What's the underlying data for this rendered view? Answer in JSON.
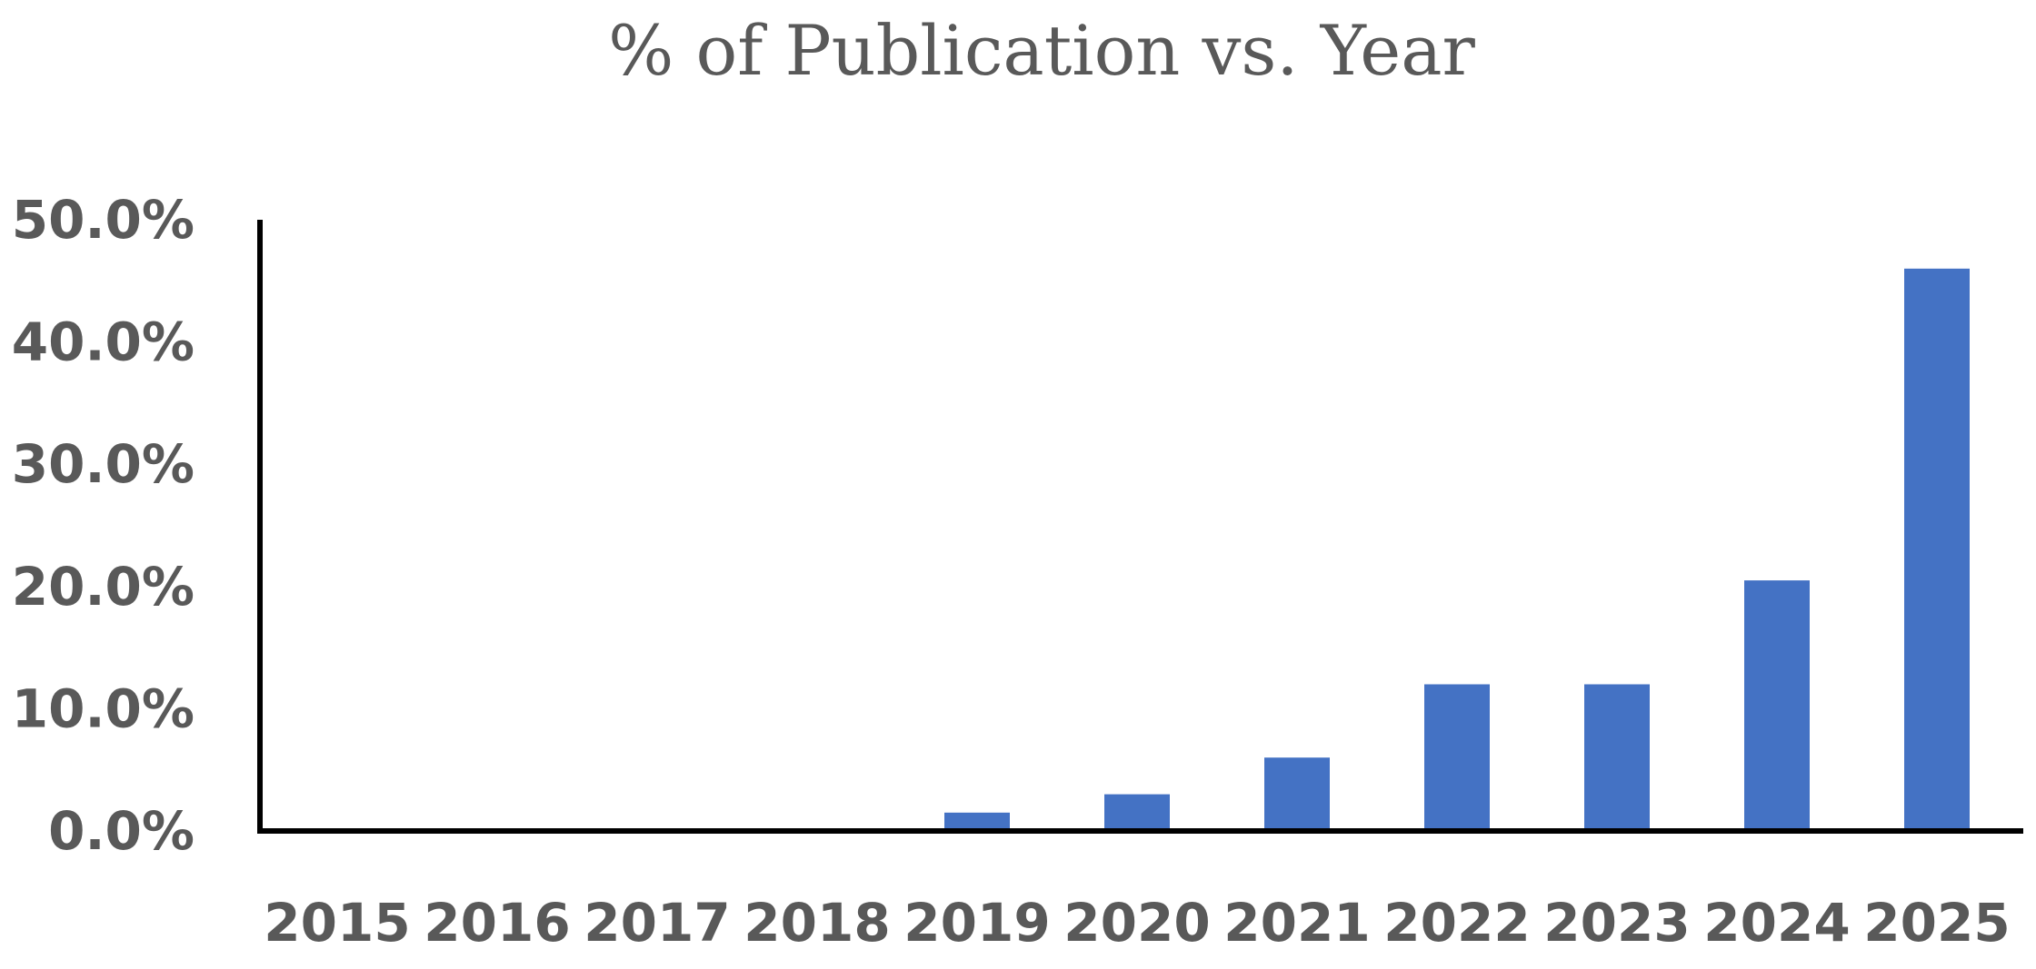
{
  "chart_data": {
    "type": "bar",
    "title": "% of Publication vs. Year",
    "xlabel": "",
    "ylabel": "",
    "categories": [
      "2015",
      "2016",
      "2017",
      "2018",
      "2019",
      "2020",
      "2021",
      "2022",
      "2023",
      "2024",
      "2025"
    ],
    "values": [
      0.0,
      0.0,
      0.0,
      0.0,
      1.5,
      3.0,
      6.0,
      12.0,
      12.0,
      20.5,
      46.0
    ],
    "yticks": [
      "0.0%",
      "10.0%",
      "20.0%",
      "30.0%",
      "40.0%",
      "50.0%"
    ],
    "ylim": [
      0,
      50
    ],
    "grid": false,
    "legend": "none",
    "bar_color": "#4472C4"
  }
}
